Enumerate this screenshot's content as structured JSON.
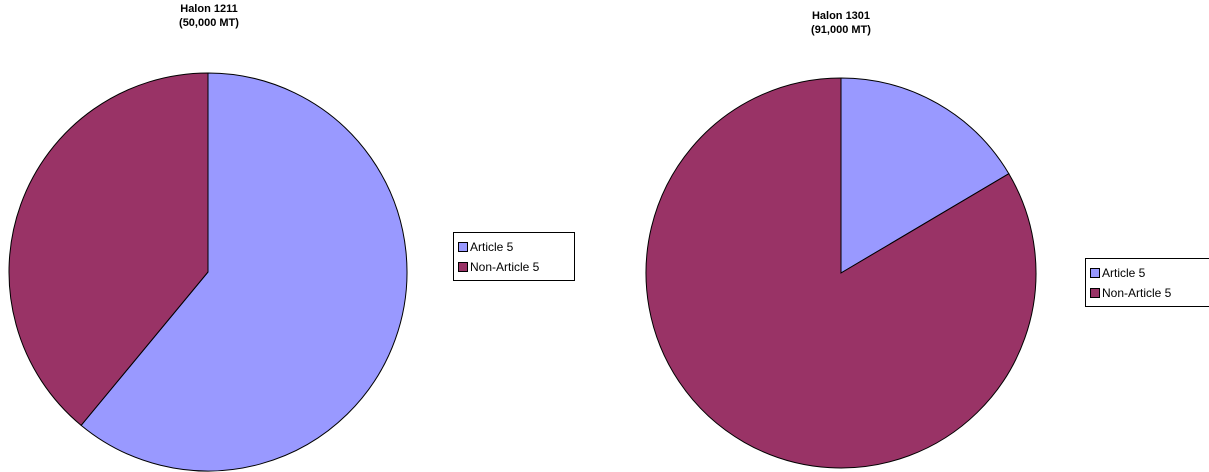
{
  "chart_data": [
    {
      "type": "pie",
      "title": [
        "Halon 1211",
        "(50,000 MT)"
      ],
      "slices": [
        {
          "label": "Article 5",
          "value": 61,
          "color": "#9999ff"
        },
        {
          "label": "Non-Article 5",
          "value": 39,
          "color": "#993366"
        }
      ],
      "legend": {
        "position": "right",
        "entries": [
          "Article 5",
          "Non-Article 5"
        ]
      }
    },
    {
      "type": "pie",
      "title": [
        "Halon 1301",
        "(91,000 MT)"
      ],
      "slices": [
        {
          "label": "Article 5",
          "value": 16.5,
          "color": "#9999ff"
        },
        {
          "label": "Non-Article 5",
          "value": 83.5,
          "color": "#993366"
        }
      ],
      "legend": {
        "position": "right",
        "entries": [
          "Article 5",
          "Non-Article 5"
        ]
      }
    }
  ]
}
